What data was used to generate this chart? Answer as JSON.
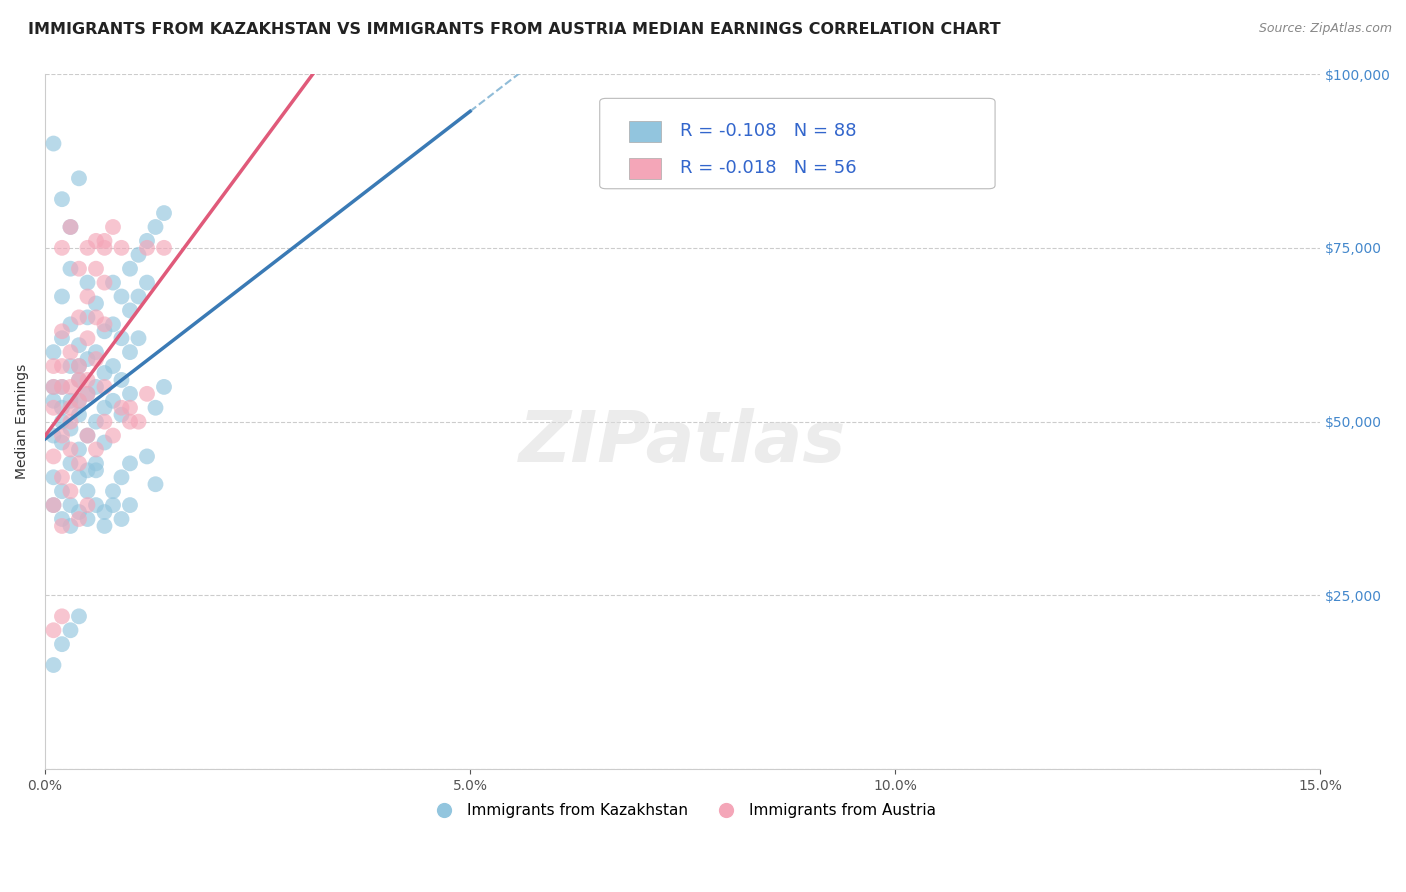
{
  "title": "IMMIGRANTS FROM KAZAKHSTAN VS IMMIGRANTS FROM AUSTRIA MEDIAN EARNINGS CORRELATION CHART",
  "source": "Source: ZipAtlas.com",
  "ylabel": "Median Earnings",
  "xlim": [
    0,
    0.15
  ],
  "ylim": [
    0,
    100000
  ],
  "xticks": [
    0.0,
    0.05,
    0.1,
    0.15
  ],
  "xtick_labels": [
    "0.0%",
    "5.0%",
    "10.0%",
    "15.0%"
  ],
  "yticks": [
    0,
    25000,
    50000,
    75000,
    100000
  ],
  "ytick_labels": [
    "",
    "$25,000",
    "$50,000",
    "$75,000",
    "$100,000"
  ],
  "legend_label1": "Immigrants from Kazakhstan",
  "legend_label2": "Immigrants from Austria",
  "R1": -0.108,
  "N1": 88,
  "R2": -0.018,
  "N2": 56,
  "color_blue": "#92c5de",
  "color_pink": "#f4a6b8",
  "color_blue_line": "#3a7ab5",
  "color_pink_line": "#e05a7a",
  "color_dashed": "#90bcd8",
  "title_fontsize": 11.5,
  "axis_label_fontsize": 10,
  "tick_fontsize": 10,
  "watermark": "ZIPatlas",
  "seed": 42,
  "kaz_points": [
    [
      0.001,
      55000
    ],
    [
      0.001,
      48000
    ],
    [
      0.002,
      62000
    ],
    [
      0.002,
      52000
    ],
    [
      0.002,
      47000
    ],
    [
      0.003,
      58000
    ],
    [
      0.003,
      53000
    ],
    [
      0.003,
      44000
    ],
    [
      0.003,
      49000
    ],
    [
      0.004,
      61000
    ],
    [
      0.004,
      56000
    ],
    [
      0.004,
      51000
    ],
    [
      0.004,
      46000
    ],
    [
      0.005,
      65000
    ],
    [
      0.005,
      59000
    ],
    [
      0.005,
      54000
    ],
    [
      0.005,
      48000
    ],
    [
      0.005,
      43000
    ],
    [
      0.006,
      67000
    ],
    [
      0.006,
      60000
    ],
    [
      0.006,
      55000
    ],
    [
      0.006,
      50000
    ],
    [
      0.006,
      44000
    ],
    [
      0.007,
      63000
    ],
    [
      0.007,
      57000
    ],
    [
      0.007,
      52000
    ],
    [
      0.007,
      47000
    ],
    [
      0.008,
      70000
    ],
    [
      0.008,
      64000
    ],
    [
      0.008,
      58000
    ],
    [
      0.008,
      53000
    ],
    [
      0.009,
      68000
    ],
    [
      0.009,
      62000
    ],
    [
      0.009,
      56000
    ],
    [
      0.009,
      51000
    ],
    [
      0.01,
      72000
    ],
    [
      0.01,
      66000
    ],
    [
      0.01,
      60000
    ],
    [
      0.01,
      54000
    ],
    [
      0.011,
      74000
    ],
    [
      0.011,
      68000
    ],
    [
      0.011,
      62000
    ],
    [
      0.012,
      76000
    ],
    [
      0.012,
      70000
    ],
    [
      0.012,
      45000
    ],
    [
      0.013,
      78000
    ],
    [
      0.013,
      52000
    ],
    [
      0.013,
      41000
    ],
    [
      0.014,
      80000
    ],
    [
      0.014,
      55000
    ],
    [
      0.001,
      42000
    ],
    [
      0.001,
      38000
    ],
    [
      0.002,
      36000
    ],
    [
      0.002,
      40000
    ],
    [
      0.003,
      35000
    ],
    [
      0.003,
      38000
    ],
    [
      0.004,
      37000
    ],
    [
      0.004,
      42000
    ],
    [
      0.005,
      36000
    ],
    [
      0.005,
      40000
    ],
    [
      0.006,
      38000
    ],
    [
      0.006,
      43000
    ],
    [
      0.007,
      35000
    ],
    [
      0.007,
      37000
    ],
    [
      0.008,
      40000
    ],
    [
      0.008,
      38000
    ],
    [
      0.009,
      36000
    ],
    [
      0.009,
      42000
    ],
    [
      0.01,
      38000
    ],
    [
      0.01,
      44000
    ],
    [
      0.001,
      53000
    ],
    [
      0.001,
      60000
    ],
    [
      0.002,
      68000
    ],
    [
      0.002,
      55000
    ],
    [
      0.002,
      50000
    ],
    [
      0.003,
      72000
    ],
    [
      0.003,
      64000
    ],
    [
      0.004,
      58000
    ],
    [
      0.004,
      53000
    ],
    [
      0.005,
      70000
    ],
    [
      0.001,
      15000
    ],
    [
      0.002,
      18000
    ],
    [
      0.003,
      20000
    ],
    [
      0.004,
      22000
    ],
    [
      0.002,
      82000
    ],
    [
      0.004,
      85000
    ],
    [
      0.003,
      78000
    ],
    [
      0.001,
      90000
    ]
  ],
  "aut_points": [
    [
      0.001,
      58000
    ],
    [
      0.001,
      52000
    ],
    [
      0.002,
      63000
    ],
    [
      0.002,
      55000
    ],
    [
      0.002,
      48000
    ],
    [
      0.003,
      60000
    ],
    [
      0.003,
      55000
    ],
    [
      0.003,
      50000
    ],
    [
      0.004,
      65000
    ],
    [
      0.004,
      58000
    ],
    [
      0.004,
      53000
    ],
    [
      0.005,
      68000
    ],
    [
      0.005,
      62000
    ],
    [
      0.005,
      56000
    ],
    [
      0.006,
      72000
    ],
    [
      0.006,
      65000
    ],
    [
      0.006,
      59000
    ],
    [
      0.007,
      76000
    ],
    [
      0.007,
      70000
    ],
    [
      0.007,
      64000
    ],
    [
      0.008,
      78000
    ],
    [
      0.009,
      75000
    ],
    [
      0.01,
      52000
    ],
    [
      0.011,
      50000
    ],
    [
      0.012,
      54000
    ],
    [
      0.001,
      45000
    ],
    [
      0.002,
      42000
    ],
    [
      0.003,
      46000
    ],
    [
      0.004,
      44000
    ],
    [
      0.005,
      48000
    ],
    [
      0.006,
      46000
    ],
    [
      0.007,
      50000
    ],
    [
      0.008,
      48000
    ],
    [
      0.009,
      52000
    ],
    [
      0.01,
      50000
    ],
    [
      0.001,
      55000
    ],
    [
      0.002,
      58000
    ],
    [
      0.003,
      52000
    ],
    [
      0.004,
      56000
    ],
    [
      0.005,
      54000
    ],
    [
      0.001,
      38000
    ],
    [
      0.002,
      35000
    ],
    [
      0.003,
      40000
    ],
    [
      0.004,
      36000
    ],
    [
      0.005,
      38000
    ],
    [
      0.002,
      75000
    ],
    [
      0.003,
      78000
    ],
    [
      0.004,
      72000
    ],
    [
      0.006,
      76000
    ],
    [
      0.007,
      55000
    ],
    [
      0.001,
      20000
    ],
    [
      0.002,
      22000
    ],
    [
      0.005,
      75000
    ],
    [
      0.007,
      75000
    ],
    [
      0.012,
      75000
    ],
    [
      0.014,
      75000
    ]
  ]
}
